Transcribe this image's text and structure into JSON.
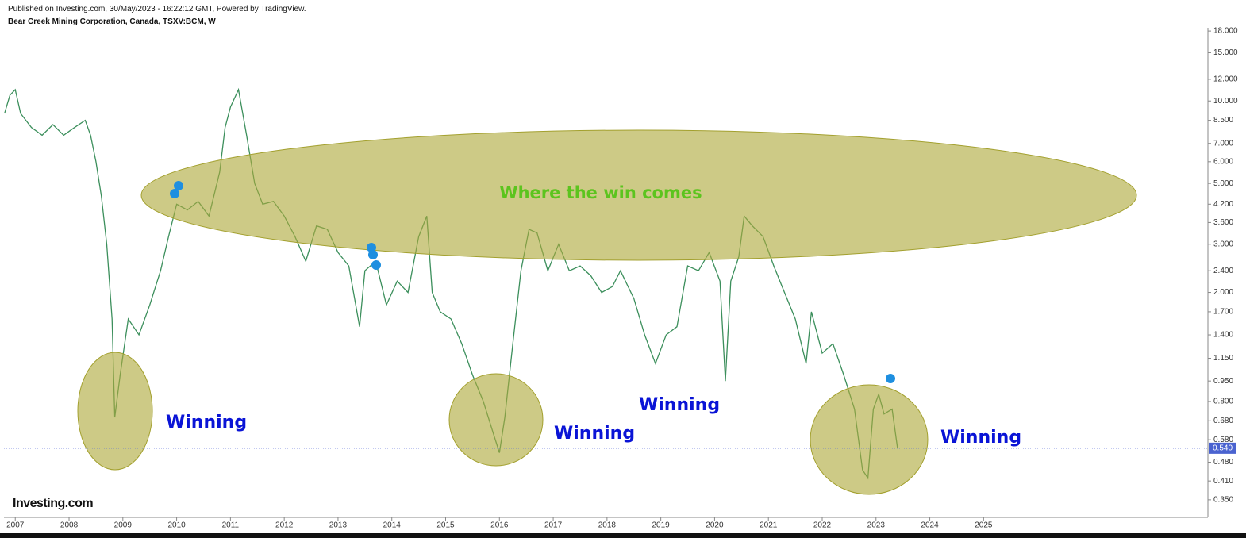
{
  "header": {
    "published": "Published on Investing.com, 30/May/2023 - 16:22:12 GMT, Powered by TradingView.",
    "symbol": "Bear Creek Mining Corporation, Canada, TSXV:BCM, W"
  },
  "logo": "Investing.com",
  "chart_data": {
    "type": "line",
    "log_scale": true,
    "color": "#3c8f5c",
    "x": [
      2006.8,
      2006.9,
      2007.0,
      2007.1,
      2007.3,
      2007.5,
      2007.7,
      2007.9,
      2008.1,
      2008.3,
      2008.4,
      2008.5,
      2008.6,
      2008.7,
      2008.8,
      2008.85,
      2008.95,
      2009.1,
      2009.3,
      2009.5,
      2009.7,
      2009.85,
      2010.0,
      2010.2,
      2010.4,
      2010.6,
      2010.8,
      2010.9,
      2011.0,
      2011.15,
      2011.3,
      2011.45,
      2011.6,
      2011.8,
      2012.0,
      2012.2,
      2012.4,
      2012.6,
      2012.8,
      2013.0,
      2013.2,
      2013.4,
      2013.5,
      2013.7,
      2013.9,
      2014.1,
      2014.3,
      2014.5,
      2014.65,
      2014.75,
      2014.9,
      2015.1,
      2015.3,
      2015.5,
      2015.7,
      2015.9,
      2016.0,
      2016.1,
      2016.25,
      2016.4,
      2016.55,
      2016.7,
      2016.9,
      2017.1,
      2017.3,
      2017.5,
      2017.7,
      2017.9,
      2018.1,
      2018.25,
      2018.5,
      2018.7,
      2018.9,
      2019.1,
      2019.3,
      2019.5,
      2019.7,
      2019.9,
      2020.1,
      2020.2,
      2020.3,
      2020.45,
      2020.55,
      2020.7,
      2020.9,
      2021.1,
      2021.3,
      2021.5,
      2021.7,
      2021.8,
      2022.0,
      2022.2,
      2022.4,
      2022.6,
      2022.75,
      2022.85,
      2022.95,
      2023.05,
      2023.15,
      2023.3,
      2023.4
    ],
    "series": [
      {
        "values": [
          9.0,
          10.5,
          11.0,
          9.0,
          8.0,
          7.5,
          8.2,
          7.5,
          8.0,
          8.5,
          7.5,
          6.0,
          4.5,
          3.0,
          1.6,
          0.7,
          1.0,
          1.6,
          1.4,
          1.8,
          2.4,
          3.2,
          4.2,
          4.0,
          4.3,
          3.8,
          5.5,
          8.0,
          9.5,
          11.0,
          7.5,
          5.0,
          4.2,
          4.3,
          3.8,
          3.2,
          2.6,
          3.5,
          3.4,
          2.8,
          2.5,
          1.5,
          2.4,
          2.6,
          1.8,
          2.2,
          2.0,
          3.2,
          3.8,
          2.0,
          1.7,
          1.6,
          1.3,
          1.0,
          0.8,
          0.6,
          0.52,
          0.7,
          1.3,
          2.4,
          3.4,
          3.3,
          2.4,
          3.0,
          2.4,
          2.5,
          2.3,
          2.0,
          2.1,
          2.4,
          1.9,
          1.4,
          1.1,
          1.4,
          1.5,
          2.5,
          2.4,
          2.8,
          2.2,
          0.95,
          2.2,
          2.7,
          3.8,
          3.5,
          3.2,
          2.5,
          2.0,
          1.6,
          1.1,
          1.7,
          1.2,
          1.3,
          1.0,
          0.75,
          0.45,
          0.42,
          0.75,
          0.85,
          0.72,
          0.75,
          0.54
        ]
      }
    ],
    "xlim": [
      2006.79,
      2029.17
    ],
    "xticks": [
      2007,
      2008,
      2009,
      2010,
      2011,
      2012,
      2013,
      2014,
      2015,
      2016,
      2017,
      2018,
      2019,
      2020,
      2021,
      2022,
      2023,
      2024,
      2025
    ],
    "ylim": [
      0.302,
      18.5
    ],
    "yticks": [
      {
        "value": 18,
        "label": "18.000"
      },
      {
        "value": 15,
        "label": "15.000"
      },
      {
        "value": 12,
        "label": "12.000"
      },
      {
        "value": 10,
        "label": "10.000"
      },
      {
        "value": 8.5,
        "label": "8.500"
      },
      {
        "value": 7,
        "label": "7.000"
      },
      {
        "value": 6,
        "label": "6.000"
      },
      {
        "value": 5,
        "label": "5.000"
      },
      {
        "value": 4.2,
        "label": "4.200"
      },
      {
        "value": 3.6,
        "label": "3.600"
      },
      {
        "value": 3,
        "label": "3.000"
      },
      {
        "value": 2.4,
        "label": "2.400"
      },
      {
        "value": 2,
        "label": "2.000"
      },
      {
        "value": 1.7,
        "label": "1.700"
      },
      {
        "value": 1.4,
        "label": "1.400"
      },
      {
        "value": 1.15,
        "label": "1.150"
      },
      {
        "value": 0.95,
        "label": "0.950"
      },
      {
        "value": 0.8,
        "label": "0.800"
      },
      {
        "value": 0.68,
        "label": "0.680"
      },
      {
        "value": 0.58,
        "label": "0.580"
      },
      {
        "value": 0.48,
        "label": "0.480"
      },
      {
        "value": 0.41,
        "label": "0.410"
      },
      {
        "value": 0.35,
        "label": "0.350"
      }
    ],
    "last_price": {
      "value": 0.54,
      "label": "0.540"
    },
    "annotations": [
      "Where the win comes",
      "Winning",
      "Winning",
      "Winning",
      "Winning"
    ]
  }
}
